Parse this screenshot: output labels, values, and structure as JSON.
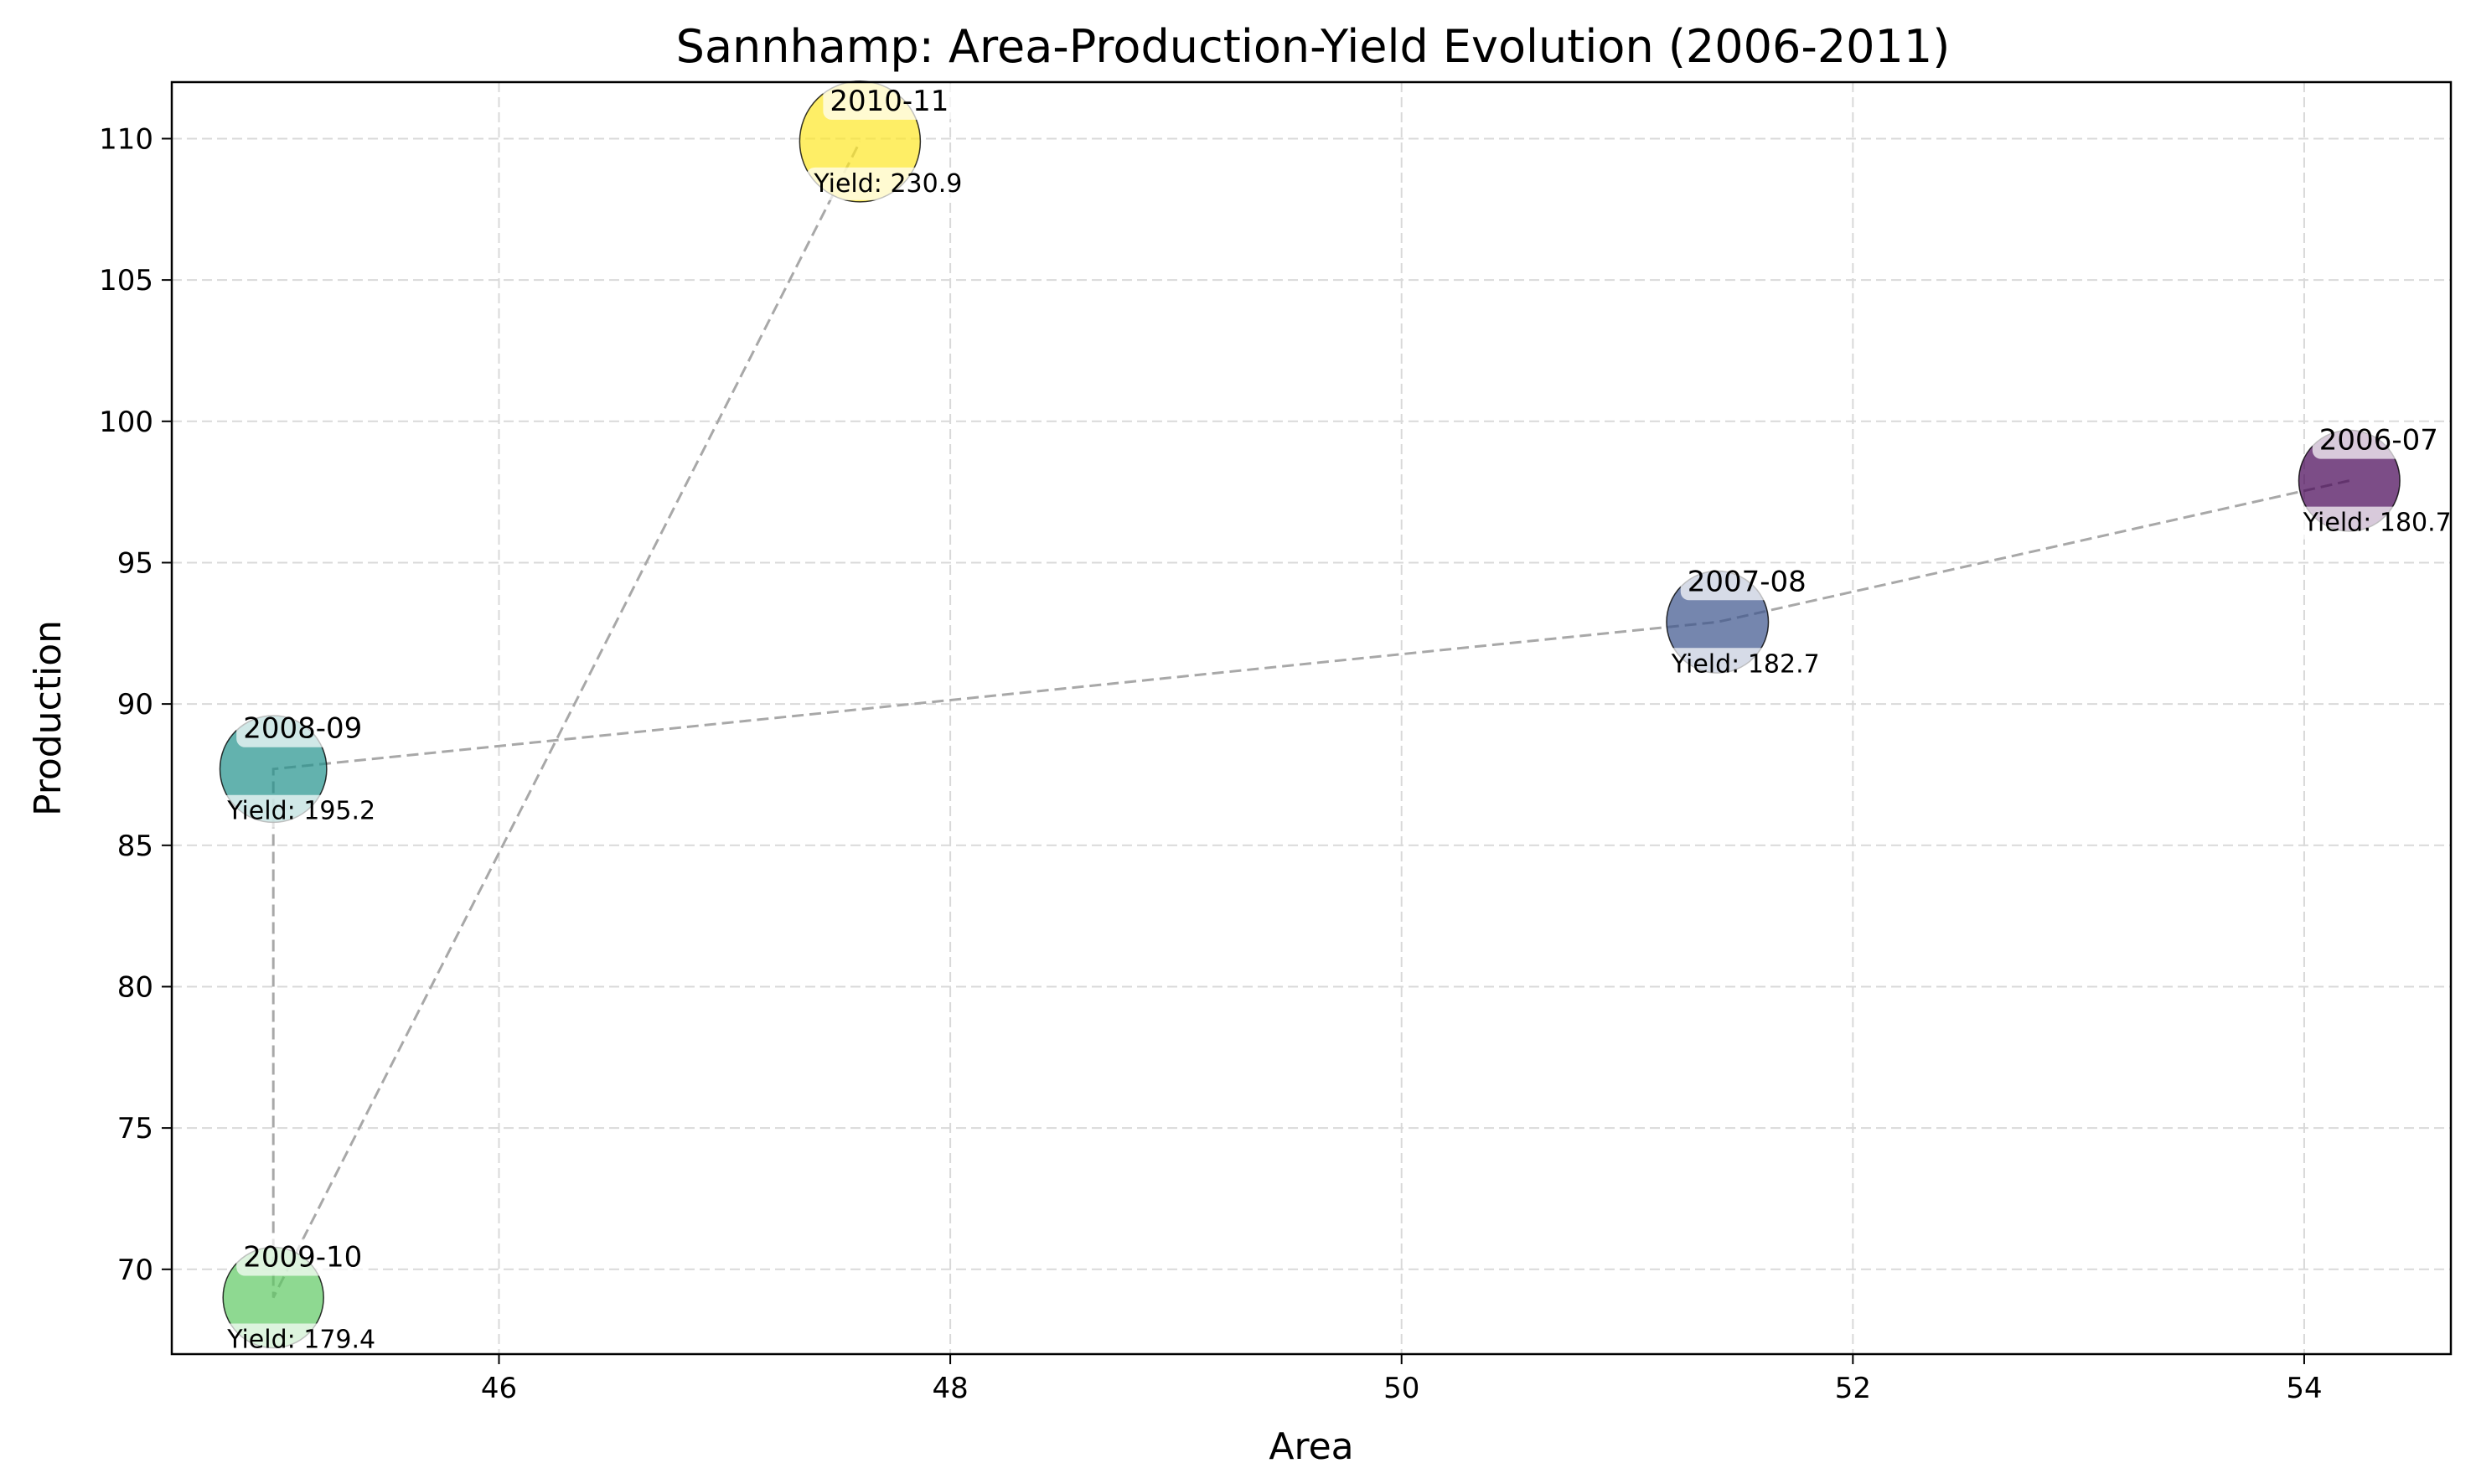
{
  "chart_data": {
    "type": "scatter",
    "title": "Sannhamp: Area-Production-Yield Evolution (2006-2011)",
    "xlabel": "Area",
    "ylabel": "Production",
    "xlim": [
      44.55,
      54.65
    ],
    "ylim": [
      67.0,
      112.0
    ],
    "xticks": [
      46,
      48,
      50,
      52,
      54
    ],
    "yticks": [
      70,
      75,
      80,
      85,
      90,
      95,
      100,
      105,
      110
    ],
    "grid": true,
    "bubble_style": "sized by yield, colored by time (viridis)",
    "connector": "dashed gray line joining points in year order",
    "points": [
      {
        "label": "2006-07",
        "x": 54.2,
        "y": 97.9,
        "yield": 180.7,
        "yield_text": "Yield: 180.7",
        "color": "#440154"
      },
      {
        "label": "2007-08",
        "x": 51.4,
        "y": 92.9,
        "yield": 182.7,
        "yield_text": "Yield: 182.7",
        "color": "#3b528b"
      },
      {
        "label": "2008-09",
        "x": 45.0,
        "y": 87.7,
        "yield": 195.2,
        "yield_text": "Yield: 195.2",
        "color": "#21918c"
      },
      {
        "label": "2009-10",
        "x": 45.0,
        "y": 69.0,
        "yield": 179.4,
        "yield_text": "Yield: 179.4",
        "color": "#5ec962"
      },
      {
        "label": "2010-11",
        "x": 47.6,
        "y": 109.9,
        "yield": 230.9,
        "yield_text": "Yield: 230.9",
        "color": "#fde725"
      }
    ]
  }
}
